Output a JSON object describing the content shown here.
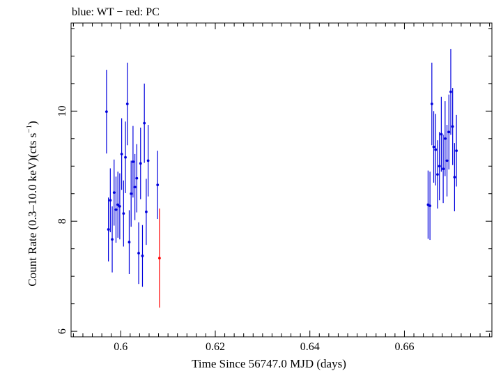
{
  "chart_data": {
    "type": "scatter",
    "title": "blue: WT − red: PC",
    "xlabel": "Time Since 56747.0 MJD (days)",
    "ylabel_main": "Count Rate (0.3–10.0 keV)(cts s",
    "ylabel_sup": "−1",
    "ylabel_close": ")",
    "xlim": [
      0.5895,
      0.6785
    ],
    "ylim": [
      5.9,
      11.6
    ],
    "x_ticks_major": [
      0.6,
      0.62,
      0.64,
      0.66
    ],
    "x_tick_labels": [
      "0.6",
      "0.62",
      "0.64",
      "0.66"
    ],
    "y_ticks_major": [
      6,
      8,
      10
    ],
    "y_tick_labels": [
      "6",
      "8",
      "10"
    ],
    "grid": false,
    "series": [
      {
        "name": "WT",
        "color": "#0000dd",
        "points": [
          {
            "x": 0.597,
            "y": 9.99,
            "err": 0.76
          },
          {
            "x": 0.5974,
            "y": 7.85,
            "err": 0.58
          },
          {
            "x": 0.5978,
            "y": 8.38,
            "err": 0.58
          },
          {
            "x": 0.5982,
            "y": 7.67,
            "err": 0.6
          },
          {
            "x": 0.5986,
            "y": 8.52,
            "err": 0.6
          },
          {
            "x": 0.599,
            "y": 8.21,
            "err": 0.6
          },
          {
            "x": 0.5994,
            "y": 8.3,
            "err": 0.6
          },
          {
            "x": 0.5998,
            "y": 8.27,
            "err": 0.6
          },
          {
            "x": 0.6002,
            "y": 9.22,
            "err": 0.65
          },
          {
            "x": 0.6006,
            "y": 8.14,
            "err": 0.6
          },
          {
            "x": 0.601,
            "y": 9.16,
            "err": 0.65
          },
          {
            "x": 0.6014,
            "y": 10.13,
            "err": 0.75
          },
          {
            "x": 0.6018,
            "y": 7.62,
            "err": 0.58
          },
          {
            "x": 0.6022,
            "y": 8.5,
            "err": 0.6
          },
          {
            "x": 0.6026,
            "y": 9.08,
            "err": 0.65
          },
          {
            "x": 0.603,
            "y": 8.62,
            "err": 0.6
          },
          {
            "x": 0.6034,
            "y": 8.78,
            "err": 0.62
          },
          {
            "x": 0.6038,
            "y": 7.42,
            "err": 0.56
          },
          {
            "x": 0.6042,
            "y": 9.05,
            "err": 0.65
          },
          {
            "x": 0.6046,
            "y": 7.37,
            "err": 0.56
          },
          {
            "x": 0.605,
            "y": 9.78,
            "err": 0.72
          },
          {
            "x": 0.6054,
            "y": 8.17,
            "err": 0.6
          },
          {
            "x": 0.6058,
            "y": 9.1,
            "err": 0.65
          },
          {
            "x": 0.6078,
            "y": 8.66,
            "err": 0.62
          },
          {
            "x": 0.665,
            "y": 8.3,
            "err": 0.62
          },
          {
            "x": 0.6654,
            "y": 8.28,
            "err": 0.62
          },
          {
            "x": 0.6658,
            "y": 10.13,
            "err": 0.75
          },
          {
            "x": 0.6662,
            "y": 9.35,
            "err": 0.65
          },
          {
            "x": 0.6666,
            "y": 9.3,
            "err": 0.65
          },
          {
            "x": 0.667,
            "y": 8.85,
            "err": 0.62
          },
          {
            "x": 0.6674,
            "y": 9.0,
            "err": 0.62
          },
          {
            "x": 0.6678,
            "y": 9.58,
            "err": 0.68
          },
          {
            "x": 0.6682,
            "y": 8.95,
            "err": 0.62
          },
          {
            "x": 0.6686,
            "y": 9.5,
            "err": 0.68
          },
          {
            "x": 0.669,
            "y": 9.1,
            "err": 0.65
          },
          {
            "x": 0.6694,
            "y": 9.62,
            "err": 0.68
          },
          {
            "x": 0.6698,
            "y": 10.35,
            "err": 0.78
          },
          {
            "x": 0.6702,
            "y": 9.72,
            "err": 0.7
          },
          {
            "x": 0.6706,
            "y": 8.8,
            "err": 0.62
          },
          {
            "x": 0.671,
            "y": 9.28,
            "err": 0.65
          }
        ]
      },
      {
        "name": "PC",
        "color": "#ff0000",
        "points": [
          {
            "x": 0.6082,
            "y": 7.33,
            "err": 0.9
          }
        ]
      }
    ]
  }
}
